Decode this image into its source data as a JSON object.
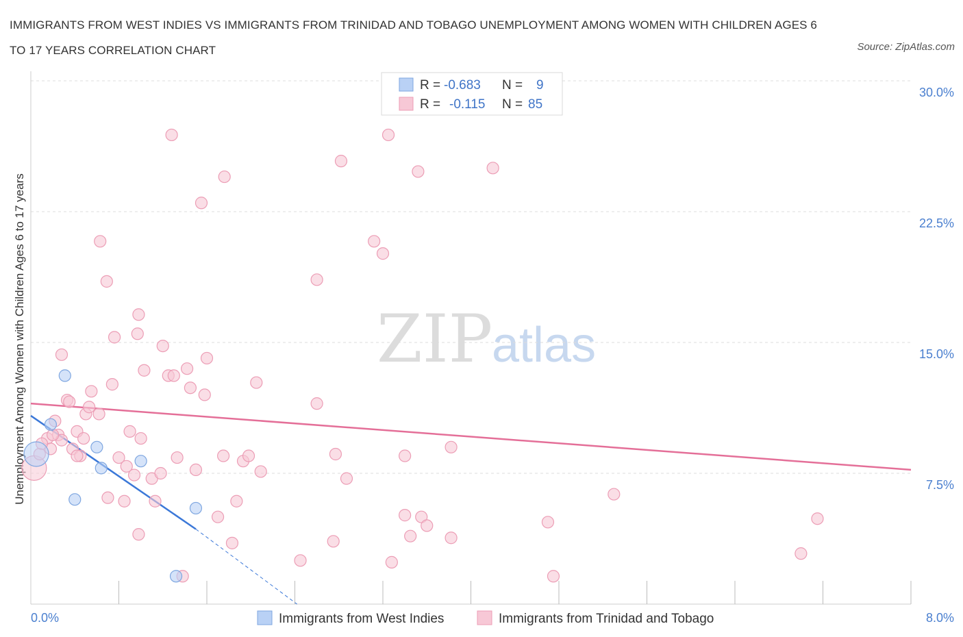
{
  "title": "IMMIGRANTS FROM WEST INDIES VS IMMIGRANTS FROM TRINIDAD AND TOBAGO UNEMPLOYMENT AMONG WOMEN WITH CHILDREN AGES 6 TO 17 YEARS CORRELATION CHART",
  "source": "Source: ZipAtlas.com",
  "watermark": {
    "zip": "ZIP",
    "atlas": "atlas"
  },
  "colors": {
    "blue_fill": "#b9d1f5",
    "blue_stroke": "#7ea6e0",
    "blue_line": "#3b78d8",
    "pink_fill": "#f7c8d6",
    "pink_stroke": "#ec9db5",
    "pink_line": "#e46f98",
    "grid": "#dddddd",
    "tick_text": "#4a7fcf"
  },
  "legend": {
    "rows": [
      {
        "r_label": "R =",
        "r_value": "-0.683",
        "n_label": "N =",
        "n_value": "9"
      },
      {
        "r_label": "R =",
        "r_value": "-0.115",
        "n_label": "N =",
        "n_value": "85"
      }
    ]
  },
  "chart_data": {
    "type": "scatter",
    "title": "IMMIGRANTS FROM WEST INDIES VS IMMIGRANTS FROM TRINIDAD AND TOBAGO UNEMPLOYMENT AMONG WOMEN WITH CHILDREN AGES 6 TO 17 YEARS CORRELATION CHART",
    "xlabel": "",
    "ylabel": "Unemployment Among Women with Children Ages 6 to 17 years",
    "xlim": [
      0,
      8
    ],
    "ylim": [
      0,
      30
    ],
    "x_tick_labels": [
      "0.0%",
      "8.0%"
    ],
    "y_ticks": [
      7.5,
      15,
      22.5,
      30
    ],
    "y_tick_labels": [
      "7.5%",
      "15.0%",
      "22.5%",
      "30.0%"
    ],
    "grid": true,
    "legend_position": "top-center",
    "series": [
      {
        "name": "Immigrants from West Indies",
        "color": "blue",
        "points": [
          {
            "x": 0.05,
            "y": 8.6,
            "big": true
          },
          {
            "x": 0.31,
            "y": 13.1
          },
          {
            "x": 0.18,
            "y": 10.3
          },
          {
            "x": 0.6,
            "y": 9.0
          },
          {
            "x": 0.64,
            "y": 7.8
          },
          {
            "x": 1.0,
            "y": 8.2
          },
          {
            "x": 0.4,
            "y": 6.0
          },
          {
            "x": 1.5,
            "y": 5.5
          },
          {
            "x": 1.32,
            "y": 1.6
          }
        ],
        "trend": {
          "x0": 0.0,
          "y0": 10.8,
          "x1": 1.5,
          "y1": 4.3,
          "dash_x1": 2.42,
          "dash_y1": 0.0
        }
      },
      {
        "name": "Immigrants from Trinidad and Tobago",
        "color": "pink",
        "points": [
          {
            "x": 0.03,
            "y": 7.8,
            "big": true
          },
          {
            "x": 0.08,
            "y": 8.6
          },
          {
            "x": 0.15,
            "y": 9.5
          },
          {
            "x": 0.18,
            "y": 8.9
          },
          {
            "x": 0.22,
            "y": 10.5
          },
          {
            "x": 0.25,
            "y": 9.7
          },
          {
            "x": 0.28,
            "y": 9.4
          },
          {
            "x": 0.33,
            "y": 11.7
          },
          {
            "x": 0.35,
            "y": 11.6
          },
          {
            "x": 0.38,
            "y": 8.9
          },
          {
            "x": 0.42,
            "y": 9.9
          },
          {
            "x": 0.45,
            "y": 8.5
          },
          {
            "x": 0.48,
            "y": 9.5
          },
          {
            "x": 0.5,
            "y": 10.9
          },
          {
            "x": 0.53,
            "y": 11.3
          },
          {
            "x": 0.55,
            "y": 12.2
          },
          {
            "x": 0.62,
            "y": 10.9
          },
          {
            "x": 0.7,
            "y": 6.1
          },
          {
            "x": 0.74,
            "y": 12.6
          },
          {
            "x": 0.76,
            "y": 15.3
          },
          {
            "x": 0.8,
            "y": 8.4
          },
          {
            "x": 0.85,
            "y": 5.9
          },
          {
            "x": 0.87,
            "y": 7.9
          },
          {
            "x": 0.9,
            "y": 9.9
          },
          {
            "x": 0.94,
            "y": 7.4
          },
          {
            "x": 0.98,
            "y": 4.0
          },
          {
            "x": 1.03,
            "y": 13.4
          },
          {
            "x": 1.0,
            "y": 9.5
          },
          {
            "x": 1.1,
            "y": 7.2
          },
          {
            "x": 1.13,
            "y": 5.9
          },
          {
            "x": 1.18,
            "y": 7.5
          },
          {
            "x": 1.2,
            "y": 14.8
          },
          {
            "x": 1.25,
            "y": 13.1
          },
          {
            "x": 1.33,
            "y": 8.4
          },
          {
            "x": 1.42,
            "y": 13.5
          },
          {
            "x": 1.45,
            "y": 12.4
          },
          {
            "x": 1.5,
            "y": 7.7
          },
          {
            "x": 1.58,
            "y": 12.0
          },
          {
            "x": 1.6,
            "y": 14.1
          },
          {
            "x": 0.28,
            "y": 14.3
          },
          {
            "x": 0.63,
            "y": 20.8
          },
          {
            "x": 0.69,
            "y": 18.5
          },
          {
            "x": 0.98,
            "y": 16.6
          },
          {
            "x": 0.97,
            "y": 15.5
          },
          {
            "x": 1.3,
            "y": 13.1
          },
          {
            "x": 1.28,
            "y": 26.9
          },
          {
            "x": 1.55,
            "y": 23.0
          },
          {
            "x": 1.76,
            "y": 24.5
          },
          {
            "x": 1.7,
            "y": 5.0
          },
          {
            "x": 1.75,
            "y": 8.5
          },
          {
            "x": 1.83,
            "y": 3.5
          },
          {
            "x": 1.87,
            "y": 5.9
          },
          {
            "x": 1.93,
            "y": 8.2
          },
          {
            "x": 1.98,
            "y": 8.5
          },
          {
            "x": 2.05,
            "y": 12.7
          },
          {
            "x": 2.09,
            "y": 7.6
          },
          {
            "x": 2.45,
            "y": 2.5
          },
          {
            "x": 2.6,
            "y": 11.5
          },
          {
            "x": 2.6,
            "y": 18.6
          },
          {
            "x": 2.75,
            "y": 3.6
          },
          {
            "x": 2.77,
            "y": 8.6
          },
          {
            "x": 2.82,
            "y": 25.4
          },
          {
            "x": 2.87,
            "y": 7.2
          },
          {
            "x": 3.12,
            "y": 20.8
          },
          {
            "x": 3.2,
            "y": 20.1
          },
          {
            "x": 3.25,
            "y": 26.9
          },
          {
            "x": 3.28,
            "y": 2.4
          },
          {
            "x": 3.4,
            "y": 5.1
          },
          {
            "x": 3.4,
            "y": 8.5
          },
          {
            "x": 3.45,
            "y": 3.9
          },
          {
            "x": 3.52,
            "y": 24.8
          },
          {
            "x": 3.55,
            "y": 5.0
          },
          {
            "x": 3.6,
            "y": 4.5
          },
          {
            "x": 3.82,
            "y": 3.8
          },
          {
            "x": 3.82,
            "y": 9.0
          },
          {
            "x": 4.2,
            "y": 25.0
          },
          {
            "x": 4.7,
            "y": 4.7
          },
          {
            "x": 4.75,
            "y": 1.6
          },
          {
            "x": 5.3,
            "y": 6.3
          },
          {
            "x": 7.0,
            "y": 2.9
          },
          {
            "x": 7.15,
            "y": 4.9
          },
          {
            "x": 1.38,
            "y": 1.6
          },
          {
            "x": 0.1,
            "y": 9.2
          },
          {
            "x": 0.2,
            "y": 9.7
          },
          {
            "x": 0.42,
            "y": 8.5
          }
        ],
        "trend": {
          "x0": 0.0,
          "y0": 11.5,
          "x1": 8.0,
          "y1": 7.7
        }
      }
    ]
  },
  "bottom_legend": [
    "Immigrants from West Indies",
    "Immigrants from Trinidad and Tobago"
  ]
}
